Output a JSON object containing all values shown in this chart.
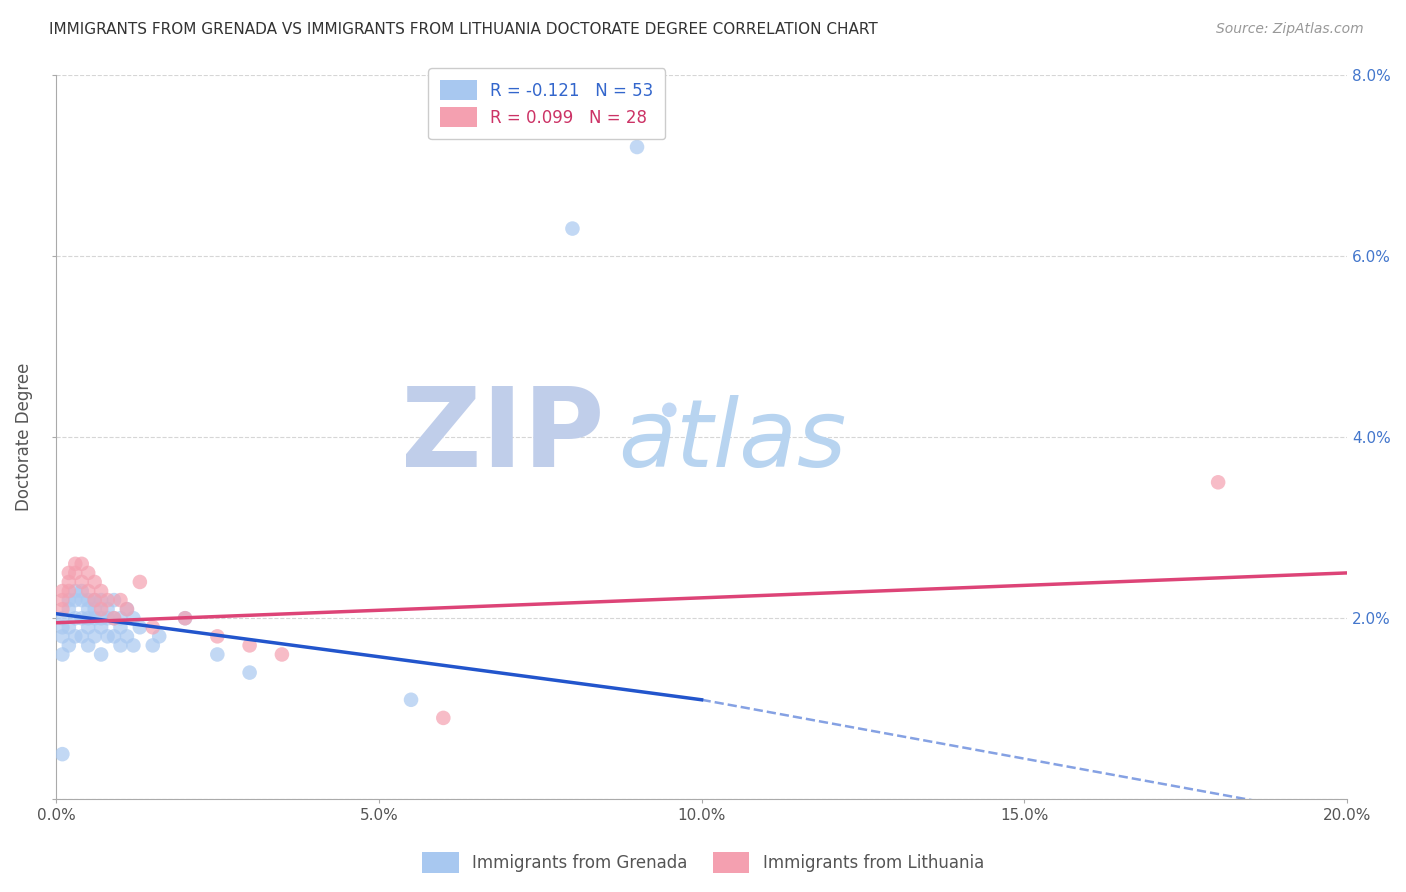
{
  "title": "IMMIGRANTS FROM GRENADA VS IMMIGRANTS FROM LITHUANIA DOCTORATE DEGREE CORRELATION CHART",
  "source": "Source: ZipAtlas.com",
  "ylabel": "Doctorate Degree",
  "xlim": [
    0.0,
    0.2
  ],
  "ylim": [
    0.0,
    0.08
  ],
  "xticks": [
    0.0,
    0.05,
    0.1,
    0.15,
    0.2
  ],
  "yticks": [
    0.0,
    0.02,
    0.04,
    0.06,
    0.08
  ],
  "xtick_labels": [
    "0.0%",
    "5.0%",
    "10.0%",
    "15.0%",
    "20.0%"
  ],
  "ytick_labels_right": [
    "",
    "2.0%",
    "4.0%",
    "6.0%",
    "8.0%"
  ],
  "legend1_label": "R = -0.121   N = 53",
  "legend2_label": "R = 0.099   N = 28",
  "grenada_color": "#a8c8f0",
  "lithuania_color": "#f4a0b0",
  "grenada_line_color": "#2255cc",
  "lithuania_line_color": "#dd4477",
  "watermark_zip_color": "#c0ceea",
  "watermark_atlas_color": "#b8d4f0",
  "background_color": "#ffffff",
  "grenada_x": [
    0.001,
    0.001,
    0.001,
    0.001,
    0.001,
    0.002,
    0.002,
    0.002,
    0.002,
    0.003,
    0.003,
    0.003,
    0.003,
    0.004,
    0.004,
    0.004,
    0.004,
    0.005,
    0.005,
    0.005,
    0.005,
    0.005,
    0.006,
    0.006,
    0.006,
    0.006,
    0.007,
    0.007,
    0.007,
    0.007,
    0.008,
    0.008,
    0.008,
    0.009,
    0.009,
    0.009,
    0.01,
    0.01,
    0.01,
    0.011,
    0.011,
    0.012,
    0.012,
    0.013,
    0.015,
    0.016,
    0.02,
    0.025,
    0.03,
    0.055,
    0.08,
    0.09,
    0.095
  ],
  "grenada_y": [
    0.02,
    0.019,
    0.018,
    0.016,
    0.005,
    0.022,
    0.021,
    0.019,
    0.017,
    0.023,
    0.022,
    0.02,
    0.018,
    0.023,
    0.022,
    0.02,
    0.018,
    0.022,
    0.021,
    0.02,
    0.019,
    0.017,
    0.022,
    0.021,
    0.02,
    0.018,
    0.022,
    0.02,
    0.019,
    0.016,
    0.021,
    0.02,
    0.018,
    0.022,
    0.02,
    0.018,
    0.02,
    0.019,
    0.017,
    0.021,
    0.018,
    0.02,
    0.017,
    0.019,
    0.017,
    0.018,
    0.02,
    0.016,
    0.014,
    0.011,
    0.063,
    0.072,
    0.043
  ],
  "lithuania_x": [
    0.001,
    0.001,
    0.001,
    0.002,
    0.002,
    0.002,
    0.003,
    0.003,
    0.004,
    0.004,
    0.005,
    0.005,
    0.006,
    0.006,
    0.007,
    0.007,
    0.008,
    0.009,
    0.01,
    0.011,
    0.013,
    0.015,
    0.02,
    0.025,
    0.03,
    0.035,
    0.06,
    0.18
  ],
  "lithuania_y": [
    0.023,
    0.022,
    0.021,
    0.025,
    0.024,
    0.023,
    0.026,
    0.025,
    0.026,
    0.024,
    0.025,
    0.023,
    0.024,
    0.022,
    0.023,
    0.021,
    0.022,
    0.02,
    0.022,
    0.021,
    0.024,
    0.019,
    0.02,
    0.018,
    0.017,
    0.016,
    0.009,
    0.035
  ],
  "grenada_trend_y_start": 0.0205,
  "grenada_trend_y_at_solid_end": 0.011,
  "grenada_trend_solid_end_x": 0.1,
  "grenada_trend_y_end": -0.002,
  "lithuania_trend_y_start": 0.0195,
  "lithuania_trend_y_end": 0.025
}
